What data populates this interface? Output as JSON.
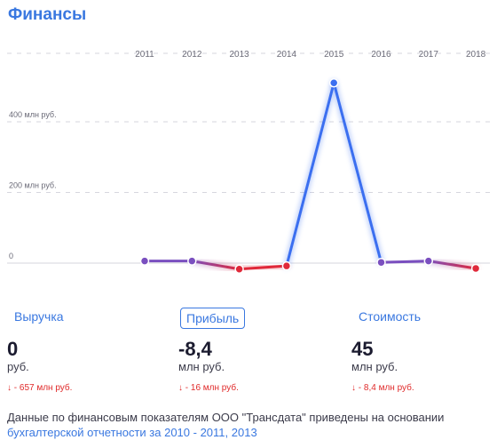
{
  "section_title": "Финансы",
  "chart_data": {
    "type": "line",
    "x": [
      "2011",
      "2012",
      "2013",
      "2014",
      "2015",
      "2016",
      "2017",
      "2018"
    ],
    "series": [
      {
        "values": [
          6,
          6,
          -17,
          -8,
          510,
          2,
          6,
          -15
        ]
      }
    ],
    "y_tick_labels": [
      "0",
      "200 млн руб.",
      "400 млн руб."
    ],
    "y_ticks": [
      0,
      200,
      400
    ],
    "ylim": [
      -40,
      600
    ],
    "grid": true,
    "colors": {
      "positive": "#3b6ff0",
      "negative": "#e0293a",
      "neutral": "#7a4fbf"
    }
  },
  "tabs": [
    {
      "label": "Выручка",
      "active": false
    },
    {
      "label": "Прибыль",
      "active": true
    },
    {
      "label": "Стоимость",
      "active": false
    }
  ],
  "metrics": [
    {
      "value": "0",
      "unit": "руб.",
      "change": "↓ - 657 млн руб."
    },
    {
      "value": "-8,4",
      "unit": "млн руб.",
      "change": "↓ - 16 млн руб."
    },
    {
      "value": "45",
      "unit": "млн руб.",
      "change": "↓ - 8,4 млн руб."
    }
  ],
  "description": "Данные по финансовым показателям ООО \"Трансдата\" приведены на основании",
  "description_link": "бухгалтерской отчетности за 2010 - 2011, 2013"
}
